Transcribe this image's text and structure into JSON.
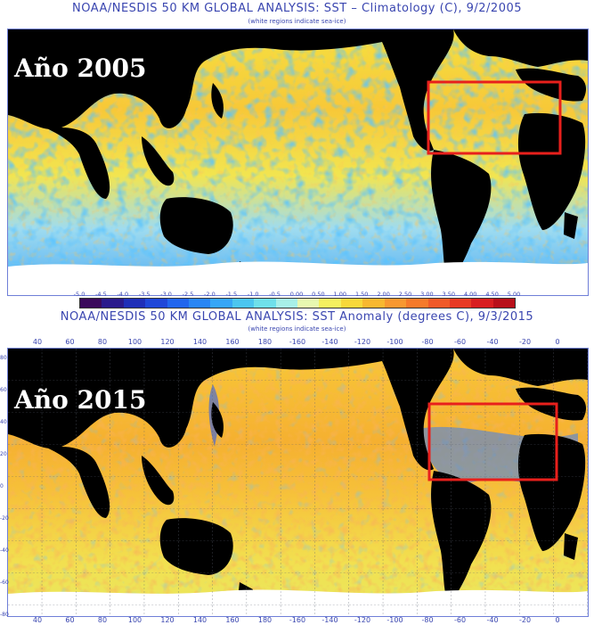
{
  "panel_top": {
    "title": "NOAA/NESDIS 50 KM GLOBAL ANALYSIS: SST – Climatology (C), 9/2/2005",
    "subtitle": "(white regions indicate sea-ice)",
    "year_label": "Año 2005"
  },
  "colorbar": {
    "ticks": [
      "-5.0",
      "-4.5",
      "-4.0",
      "-3.5",
      "-3.0",
      "-2.5",
      "-2.0",
      "-1.5",
      "-1.0",
      "-0.5",
      "0.00",
      "0.50",
      "1.00",
      "1.50",
      "2.00",
      "2.50",
      "3.00",
      "3.50",
      "4.00",
      "4.50",
      "5.00"
    ],
    "colors": [
      "#3a0a5c",
      "#2a1a8c",
      "#1f2fb8",
      "#1f47d8",
      "#2266ee",
      "#2a86f5",
      "#36a6f7",
      "#4cc6f0",
      "#6fe0ea",
      "#a8f0e8",
      "#e8f8b0",
      "#f5f060",
      "#f8d83a",
      "#f8b830",
      "#f89830",
      "#f67a2a",
      "#f05a28",
      "#e83a24",
      "#d81e20",
      "#b8101a"
    ]
  },
  "panel_bottom": {
    "title": "NOAA/NESDIS 50 KM GLOBAL ANALYSIS: SST Anomaly (degrees C), 9/3/2015",
    "subtitle": "(white regions indicate sea-ice)",
    "year_label": "Año 2015"
  },
  "longitude_labels": [
    "40",
    "60",
    "80",
    "100",
    "120",
    "140",
    "160",
    "180",
    "-160",
    "-140",
    "-120",
    "-100",
    "-80",
    "-60",
    "-40",
    "-20",
    "0"
  ],
  "latitude_labels": [
    "80",
    "60",
    "40",
    "20",
    "0",
    "-20",
    "-40",
    "-60",
    "-80"
  ],
  "colors": {
    "title": "#3a46b0",
    "land": "#000000",
    "highlight_box": "#e8201c",
    "sea_ice": "#ffffff"
  }
}
